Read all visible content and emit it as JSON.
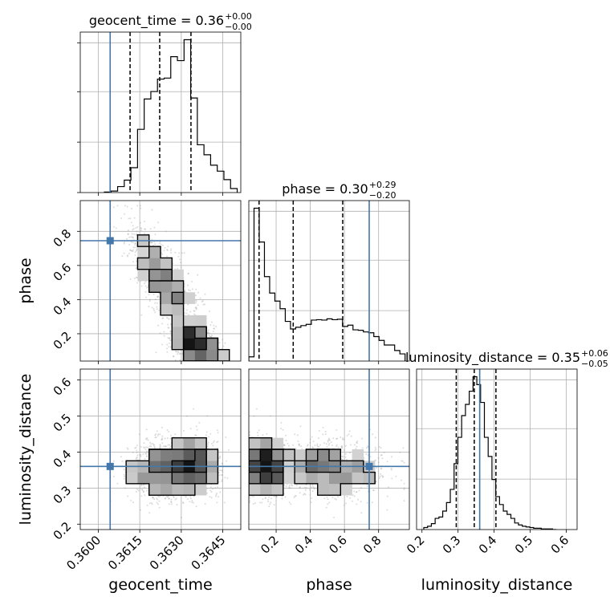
{
  "colors": {
    "truth": "#4477aa",
    "hist": "#000000",
    "grid": "#b0b0b0",
    "quantile": "#000000",
    "points": "#9a9a9a",
    "density_dark": "#111111"
  },
  "chart_data": {
    "type": "corner",
    "parameters": [
      "geocent_time",
      "phase",
      "luminosity_distance"
    ],
    "axis_labels": {
      "x": [
        "geocent_time",
        "phase",
        "luminosity_distance"
      ],
      "y": [
        "phase",
        "luminosity_distance"
      ]
    },
    "ranges": {
      "geocent_time": [
        0.35935,
        0.36515
      ],
      "phase": [
        0.04,
        0.98
      ],
      "luminosity_distance": [
        0.185,
        0.63
      ]
    },
    "ticks": {
      "geocent_time": {
        "values": [
          0.36,
          0.3615,
          0.363,
          0.3645
        ],
        "labels": [
          "0.3600",
          "0.3615",
          "0.3630",
          "0.3645"
        ]
      },
      "phase": {
        "values": [
          0.2,
          0.4,
          0.6,
          0.8
        ],
        "labels": [
          "0.2",
          "0.4",
          "0.6",
          "0.8"
        ]
      },
      "luminosity_distance": {
        "values": [
          0.2,
          0.3,
          0.4,
          0.5,
          0.6
        ],
        "labels": [
          "0.2",
          "0.3",
          "0.4",
          "0.5",
          "0.6"
        ]
      }
    },
    "truths": {
      "geocent_time": 0.36043,
      "phase": 0.745,
      "luminosity_distance": 0.36
    },
    "titles": [
      {
        "param": "geocent_time",
        "prefix": "geocent_time = 0.36",
        "plus": "+0.00",
        "minus": "−0.00"
      },
      {
        "param": "phase",
        "prefix": "phase = 0.30",
        "plus": "+0.29",
        "minus": "−0.20"
      },
      {
        "param": "luminosity_distance",
        "prefix": "luminosity_distance = 0.35",
        "plus": "+0.06",
        "minus": "−0.05"
      }
    ],
    "quantiles": {
      "geocent_time": [
        0.36115,
        0.36222,
        0.36335
      ],
      "phase": [
        0.1,
        0.3,
        0.59
      ],
      "luminosity_distance": [
        0.295,
        0.345,
        0.405
      ]
    },
    "histograms": {
      "geocent_time": {
        "edges": [
          0.36022,
          0.36046,
          0.3607,
          0.36094,
          0.36118,
          0.36142,
          0.36166,
          0.3619,
          0.36214,
          0.36238,
          0.36262,
          0.36286,
          0.3631,
          0.36334,
          0.36358,
          0.36382,
          0.36406,
          0.3643,
          0.36454,
          0.36478,
          0.36502
        ],
        "counts": [
          1,
          3,
          12,
          25,
          50,
          127,
          188,
          203,
          228,
          230,
          273,
          265,
          307,
          190,
          96,
          76,
          55,
          43,
          26,
          8
        ]
      },
      "phase": {
        "edges": [
          0.04,
          0.0705,
          0.101,
          0.1315,
          0.162,
          0.1925,
          0.223,
          0.2535,
          0.284,
          0.3145,
          0.345,
          0.3755,
          0.406,
          0.4365,
          0.467,
          0.4975,
          0.528,
          0.5585,
          0.589,
          0.6195,
          0.65,
          0.6805,
          0.711,
          0.7415,
          0.772,
          0.8025,
          0.833,
          0.8635,
          0.894,
          0.9245,
          0.955
        ],
        "counts": [
          10,
          362,
          282,
          200,
          161,
          142,
          124,
          94,
          76,
          80,
          84,
          87,
          97,
          98,
          97,
          100,
          98,
          99,
          82,
          85,
          74,
          73,
          69,
          67,
          58,
          49,
          38,
          38,
          25,
          17
        ]
      },
      "luminosity_distance": {
        "edges": [
          0.205,
          0.2155,
          0.226,
          0.2365,
          0.247,
          0.2575,
          0.268,
          0.2785,
          0.289,
          0.2995,
          0.31,
          0.3205,
          0.331,
          0.3415,
          0.352,
          0.3625,
          0.373,
          0.3835,
          0.394,
          0.4045,
          0.415,
          0.4255,
          0.436,
          0.4465,
          0.457,
          0.4675,
          0.478,
          0.4885,
          0.499,
          0.5095,
          0.52,
          0.5305,
          0.541,
          0.5515,
          0.562,
          0.5725
        ],
        "counts": [
          3,
          5,
          9,
          17,
          19,
          28,
          41,
          61,
          100,
          140,
          173,
          190,
          210,
          232,
          220,
          193,
          140,
          111,
          76,
          50,
          38,
          28,
          23,
          17,
          10,
          7,
          5,
          4,
          3,
          2,
          2,
          1,
          1,
          1,
          0
        ]
      }
    },
    "scatter_pairs": [
      {
        "x": "geocent_time",
        "y": "phase"
      },
      {
        "x": "geocent_time",
        "y": "luminosity_distance"
      },
      {
        "x": "phase",
        "y": "luminosity_distance"
      }
    ]
  }
}
